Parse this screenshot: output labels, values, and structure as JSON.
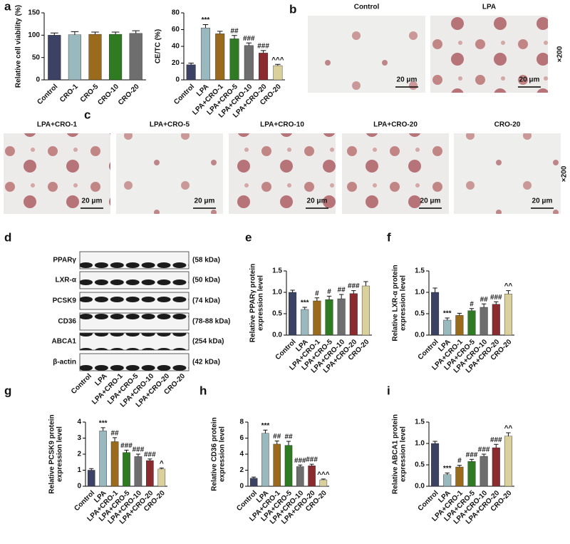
{
  "panels": [
    "a",
    "b",
    "c",
    "d",
    "e",
    "f",
    "g",
    "h",
    "i"
  ],
  "chart_data": [
    {
      "type": "bar",
      "ylabel": [
        "Relative cell viability (%)"
      ],
      "categories": [
        "Control",
        "CRO-1",
        "CRO-5",
        "CRO-10",
        "CRO-20"
      ],
      "values": [
        100,
        101,
        102,
        102,
        104
      ],
      "errors": [
        5,
        7,
        5,
        5,
        6
      ],
      "colors": [
        "#3b4263",
        "#9ab9bf",
        "#9a6b1c",
        "#2f7b22",
        "#6e6e6e"
      ],
      "annotations": [
        null,
        null,
        null,
        null,
        null
      ],
      "ylim": [
        0,
        150
      ],
      "yticks": [
        0,
        50,
        100,
        150
      ]
    },
    {
      "type": "bar",
      "ylabel": [
        "CE/TC (%)"
      ],
      "categories": [
        "Control",
        "LPA",
        "LPA+CRO-1",
        "LPA+CRO-5",
        "LPA+CRO-10",
        "LPA+CRO-20",
        "CRO-20"
      ],
      "values": [
        18,
        62,
        55,
        49,
        41,
        32,
        17
      ],
      "errors": [
        2,
        4,
        3,
        4,
        3,
        3,
        1.5
      ],
      "colors": [
        "#3b4263",
        "#9ab9bf",
        "#9a6b1c",
        "#2f7b22",
        "#6e6e6e",
        "#8b2b30",
        "#d9d09c"
      ],
      "annotations": [
        null,
        "***",
        null,
        "##",
        "###",
        "###",
        "^^^"
      ],
      "ylim": [
        0,
        80
      ],
      "yticks": [
        0,
        20,
        40,
        60,
        80
      ]
    },
    {
      "type": "bar",
      "ylabel": [
        "Relative PPARγ protein",
        "expression level"
      ],
      "categories": [
        "Control",
        "LPA",
        "LPA+CRO-1",
        "LPA+CRO-5",
        "LPA+CRO-10",
        "LPA+CRO-20",
        "CRO-20"
      ],
      "values": [
        1.0,
        0.6,
        0.8,
        0.83,
        0.85,
        0.97,
        1.15
      ],
      "errors": [
        0.05,
        0.05,
        0.07,
        0.08,
        0.1,
        0.07,
        0.1
      ],
      "colors": [
        "#3b4263",
        "#9ab9bf",
        "#9a6b1c",
        "#2f7b22",
        "#6e6e6e",
        "#8b2b30",
        "#d9d09c"
      ],
      "annotations": [
        null,
        "***",
        "#",
        "#",
        "##",
        "###",
        null
      ],
      "ylim": [
        0,
        1.5
      ],
      "yticks": [
        {
          "value": 0,
          "label": "0.0"
        },
        0.5,
        {
          "value": 1,
          "label": "1.0"
        },
        1.5
      ]
    },
    {
      "type": "bar",
      "ylabel": [
        "Relative LXR-α protein",
        "expression level"
      ],
      "categories": [
        "Control",
        "LPA",
        "LPA+CRO-1",
        "LPA+CRO-5",
        "LPA+CRO-10",
        "LPA+CRO-20",
        "CRO-20"
      ],
      "values": [
        1.0,
        0.35,
        0.46,
        0.57,
        0.65,
        0.72,
        0.96
      ],
      "errors": [
        0.1,
        0.05,
        0.05,
        0.05,
        0.08,
        0.06,
        0.08
      ],
      "colors": [
        "#3b4263",
        "#9ab9bf",
        "#9a6b1c",
        "#2f7b22",
        "#6e6e6e",
        "#8b2b30",
        "#d9d09c"
      ],
      "annotations": [
        null,
        "***",
        null,
        "#",
        "##",
        "###",
        "^^"
      ],
      "ylim": [
        0,
        1.5
      ],
      "yticks": [
        {
          "value": 0,
          "label": "0.0"
        },
        0.5,
        {
          "value": 1,
          "label": "1.0"
        },
        1.5
      ]
    },
    {
      "type": "bar",
      "ylabel": [
        "Relative PCSK9 protein",
        "expression level"
      ],
      "categories": [
        "Control",
        "LPA",
        "LPA+CRO-1",
        "LPA+CRO-5",
        "LPA+CRO-10",
        "LPA+CRO-20",
        "CRO-20"
      ],
      "values": [
        1.0,
        3.45,
        2.78,
        2.1,
        1.85,
        1.6,
        1.07
      ],
      "errors": [
        0.1,
        0.2,
        0.25,
        0.15,
        0.15,
        0.1,
        0.07
      ],
      "colors": [
        "#3b4263",
        "#9ab9bf",
        "#9a6b1c",
        "#2f7b22",
        "#6e6e6e",
        "#8b2b30",
        "#d9d09c"
      ],
      "annotations": [
        null,
        "***",
        "##",
        "###",
        "###",
        "###",
        "^"
      ],
      "ylim": [
        0,
        4
      ],
      "yticks": [
        0,
        1,
        2,
        3,
        4
      ]
    },
    {
      "type": "bar",
      "ylabel": [
        "Relative CD36 protein",
        "expression level"
      ],
      "categories": [
        "Control",
        "LPA",
        "LPA+CRO-1",
        "LPA+CRO-5",
        "LPA+CRO-10",
        "LPA+CRO-20",
        "CRO-20"
      ],
      "values": [
        1.0,
        6.6,
        5.25,
        5.1,
        2.45,
        2.55,
        0.8
      ],
      "errors": [
        0.15,
        0.4,
        0.4,
        0.5,
        0.2,
        0.2,
        0.1
      ],
      "colors": [
        "#3b4263",
        "#9ab9bf",
        "#9a6b1c",
        "#2f7b22",
        "#6e6e6e",
        "#8b2b30",
        "#d9d09c"
      ],
      "annotations": [
        null,
        "***",
        "##",
        "##",
        "###",
        "###",
        "^^^"
      ],
      "ylim": [
        0,
        8
      ],
      "yticks": [
        0,
        2,
        4,
        6,
        8
      ]
    },
    {
      "type": "bar",
      "ylabel": [
        "Relative ABCA1 protein",
        "expression level"
      ],
      "categories": [
        "Control",
        "LPA",
        "LPA+CRO-1",
        "LPA+CRO-5",
        "LPA+CRO-10",
        "LPA+CRO-20",
        "CRO-20"
      ],
      "values": [
        1.0,
        0.27,
        0.45,
        0.58,
        0.7,
        0.9,
        1.17
      ],
      "errors": [
        0.05,
        0.04,
        0.04,
        0.05,
        0.05,
        0.08,
        0.08
      ],
      "colors": [
        "#3b4263",
        "#9ab9bf",
        "#9a6b1c",
        "#2f7b22",
        "#6e6e6e",
        "#8b2b30",
        "#d9d09c"
      ],
      "annotations": [
        null,
        "***",
        "#",
        "###",
        "###",
        "###",
        "^^"
      ],
      "ylim": [
        0,
        1.5
      ],
      "yticks": [
        {
          "value": 0,
          "label": "0.0"
        },
        0.5,
        {
          "value": 1,
          "label": "1.0"
        },
        1.5
      ]
    }
  ],
  "micrographs": [
    {
      "label": "Control",
      "scale": "20 μm"
    },
    {
      "label": "LPA",
      "scale": "20 μm"
    },
    {
      "label": "LPA+CRO-1",
      "scale": "20 μm"
    },
    {
      "label": "LPA+CRO-5",
      "scale": "20 μm"
    },
    {
      "label": "LPA+CRO-10",
      "scale": "20 μm"
    },
    {
      "label": "LPA+CRO-20",
      "scale": "20 μm"
    },
    {
      "label": "CRO-20",
      "scale": "20 μm"
    }
  ],
  "magnification": [
    "×200",
    "×200"
  ],
  "blot": {
    "proteins": [
      {
        "name": "PPARγ",
        "size": "(58 kDa)"
      },
      {
        "name": "LXR-α",
        "size": "(50 kDa)"
      },
      {
        "name": "PCSK9",
        "size": "(74 kDa)"
      },
      {
        "name": "CD36",
        "size": "(78-88 kDa)"
      },
      {
        "name": "ABCA1",
        "size": "(254 kDa)"
      },
      {
        "name": "β-actin",
        "size": "(42 kDa)"
      }
    ],
    "lanes": [
      "Control",
      "LPA",
      "LPA+CRO-1",
      "LPA+CRO-5",
      "LPA+CRO-10",
      "LPA+CRO-20",
      "CRO-20"
    ]
  }
}
